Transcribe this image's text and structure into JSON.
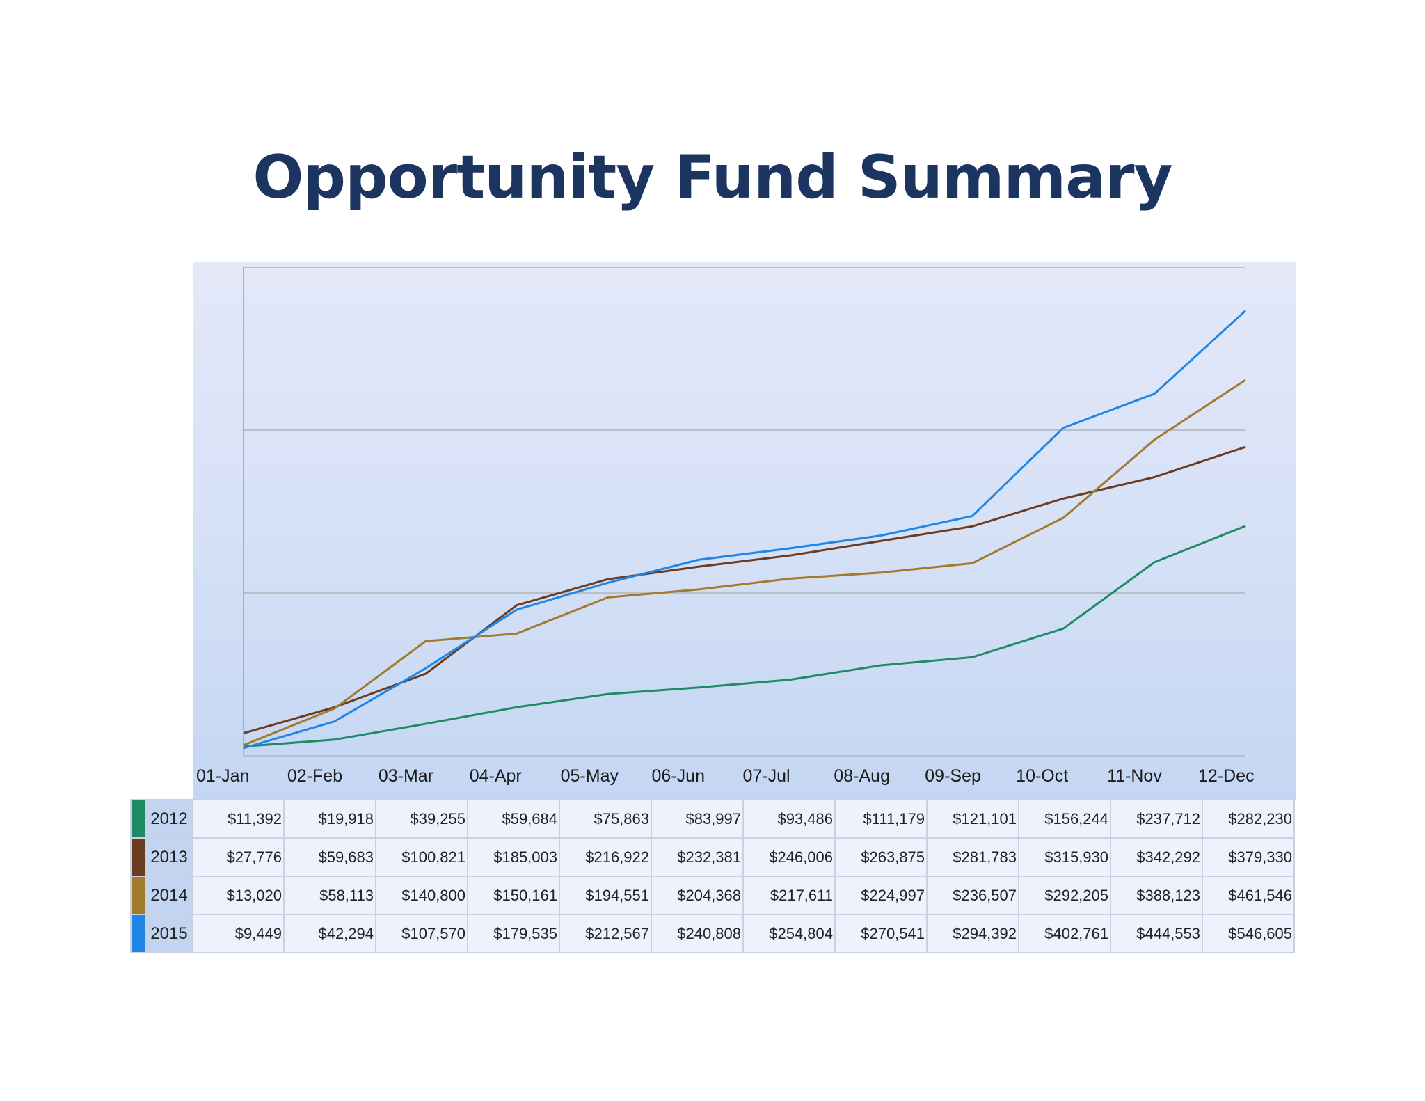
{
  "title": "Opportunity Fund Summary",
  "chart_data": {
    "type": "line",
    "title": "Opportunity Fund Summary",
    "xlabel": "",
    "ylabel": "",
    "categories": [
      "01-Jan",
      "02-Feb",
      "03-Mar",
      "04-Apr",
      "05-May",
      "06-Jun",
      "07-Jul",
      "08-Aug",
      "09-Sep",
      "10-Oct",
      "11-Nov",
      "12-Dec"
    ],
    "ylim": [
      0,
      600000
    ],
    "yticks_shown": false,
    "gridlines": [
      0,
      200000,
      400000,
      600000
    ],
    "grid": true,
    "legend": "table-below",
    "series": [
      {
        "name": "2012",
        "color": "#1e8a66",
        "values": [
          11392,
          19918,
          39255,
          59684,
          75863,
          83997,
          93486,
          111179,
          121101,
          156244,
          237712,
          282230
        ],
        "labels": [
          "$11,392",
          "$19,918",
          "$39,255",
          "$59,684",
          "$75,863",
          "$83,997",
          "$93,486",
          "$111,179",
          "$121,101",
          "$156,244",
          "$237,712",
          "$282,230"
        ]
      },
      {
        "name": "2013",
        "color": "#6b3b22",
        "values": [
          27776,
          59683,
          100821,
          185003,
          216922,
          232381,
          246006,
          263875,
          281783,
          315930,
          342292,
          379330
        ],
        "labels": [
          "$27,776",
          "$59,683",
          "$100,821",
          "$185,003",
          "$216,922",
          "$232,381",
          "$246,006",
          "$263,875",
          "$281,783",
          "$315,930",
          "$342,292",
          "$379,330"
        ]
      },
      {
        "name": "2014",
        "color": "#a17a2c",
        "values": [
          13020,
          58113,
          140800,
          150161,
          194551,
          204368,
          217611,
          224997,
          236507,
          292205,
          388123,
          461546
        ],
        "labels": [
          "$13,020",
          "$58,113",
          "$140,800",
          "$150,161",
          "$194,551",
          "$204,368",
          "$217,611",
          "$224,997",
          "$236,507",
          "$292,205",
          "$388,123",
          "$461,546"
        ]
      },
      {
        "name": "2015",
        "color": "#1f86e6",
        "values": [
          9449,
          42294,
          107570,
          179535,
          212567,
          240808,
          254804,
          270541,
          294392,
          402761,
          444553,
          546605
        ],
        "labels": [
          "$9,449",
          "$42,294",
          "$107,570",
          "$179,535",
          "$212,567",
          "$240,808",
          "$254,804",
          "$270,541",
          "$294,392",
          "$402,761",
          "$444,553",
          "$546,605"
        ]
      }
    ]
  }
}
